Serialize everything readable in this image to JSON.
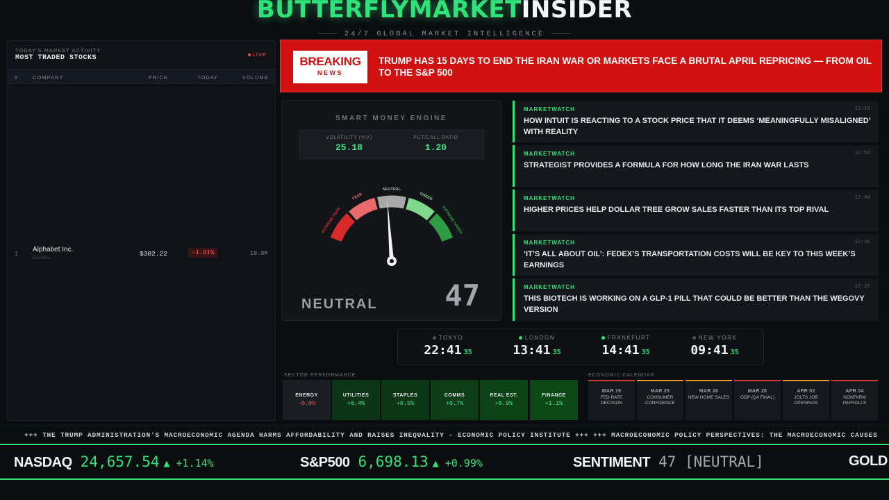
{
  "header": {
    "brand_part1": "BUTTERFLYMARKET",
    "brand_part2": "INSIDER",
    "tagline": "24/7 GLOBAL MARKET INTELLIGENCE"
  },
  "stocks_panel": {
    "subtitle": "TODAY'S MARKET ACTIVITY",
    "title": "MOST TRADED STOCKS",
    "live_label": "LIVE",
    "columns": [
      "#",
      "COMPANY",
      "PRICE",
      "TODAY",
      "VOLUME"
    ],
    "rows": [
      {
        "rank": "1",
        "company": "Alphabet Inc.",
        "ticker": "GOOGL",
        "price": "$302.22",
        "change": "-1.61%",
        "volume": "19.9M"
      }
    ]
  },
  "breaking": {
    "badge_line1": "BREAKING",
    "badge_line2": "NEWS",
    "headline": "TRUMP HAS 15 DAYS TO END THE IRAN WAR OR MARKETS FACE A BRUTAL APRIL REPRICING — FROM OIL TO THE S&P 500"
  },
  "gauge": {
    "title": "SMART MONEY ENGINE",
    "vix_label": "VOLATILITY (VIX)",
    "vix_value": "25.18",
    "pc_label": "PUT/CALL RATIO",
    "pc_value": "1.20",
    "zones": [
      "EXTREME FEAR",
      "FEAR",
      "NEUTRAL",
      "GREED",
      "EXTREME GREED"
    ],
    "sentiment_label": "NEUTRAL",
    "score": 47,
    "score_text": "47",
    "colors": {
      "extreme_fear": "#d92a2a",
      "fear": "#e86a6a",
      "neutral": "#a8a8a8",
      "greed": "#7fd98d",
      "extreme_greed": "#2f9b45"
    }
  },
  "news": [
    {
      "source": "MARKETWATCH",
      "time": "13:15",
      "headline": "HOW INTUIT IS REACTING TO A STOCK PRICE THAT IT DEEMS ‘MEANINGFULLY MISALIGNED’ WITH REALITY"
    },
    {
      "source": "MARKETWATCH",
      "time": "12:53",
      "headline": "STRATEGIST PROVIDES A FORMULA FOR HOW LONG THE IRAN WAR LASTS"
    },
    {
      "source": "MARKETWATCH",
      "time": "12:44",
      "headline": "HIGHER PRICES HELP DOLLAR TREE GROW SALES FASTER THAN ITS TOP RIVAL"
    },
    {
      "source": "MARKETWATCH",
      "time": "12:41",
      "headline": "‘IT’S ALL ABOUT OIL’: FEDEX’S TRANSPORTATION COSTS WILL BE KEY TO THIS WEEK’S EARNINGS"
    },
    {
      "source": "MARKETWATCH",
      "time": "12:27",
      "headline": "THIS BIOTECH IS WORKING ON A GLP-1 PILL THAT COULD BE BETTER THAN THE WEGOVY VERSION"
    }
  ],
  "clocks": [
    {
      "city": "TOKYO",
      "time": "22:41",
      "sec": "35",
      "status": "closed"
    },
    {
      "city": "LONDON",
      "time": "13:41",
      "sec": "35",
      "status": "open"
    },
    {
      "city": "FRANKFURT",
      "time": "14:41",
      "sec": "35",
      "status": "open"
    },
    {
      "city": "NEW YORK",
      "time": "09:41",
      "sec": "35",
      "status": "closed"
    }
  ],
  "sectors": {
    "label": "SECTOR PERFORMANCE",
    "items": [
      {
        "name": "ENERGY",
        "value": "-0.0%",
        "trend": "down"
      },
      {
        "name": "UTILITIES",
        "value": "+0.4%",
        "trend": "up"
      },
      {
        "name": "STAPLES",
        "value": "+0.5%",
        "trend": "up"
      },
      {
        "name": "COMMS",
        "value": "+0.7%",
        "trend": "up"
      },
      {
        "name": "REAL EST.",
        "value": "+0.9%",
        "trend": "up"
      },
      {
        "name": "FINANCE",
        "value": "+1.1%",
        "trend": "up"
      }
    ]
  },
  "economic_calendar": {
    "label": "ECONOMIC CALENDAR",
    "events": [
      {
        "date": "MAR 19",
        "name": "FED RATE DECISION",
        "color": "#d23a3a"
      },
      {
        "date": "MAR 25",
        "name": "CONSUMER CONFIDENCE",
        "color": "#e39a2a"
      },
      {
        "date": "MAR 26",
        "name": "NEW HOME SALES",
        "color": "#e39a2a"
      },
      {
        "date": "MAR 28",
        "name": "GDP (Q4 FINAL)",
        "color": "#d23a3a"
      },
      {
        "date": "APR 02",
        "name": "JOLTS JOB OPENINGS",
        "color": "#e39a2a"
      },
      {
        "date": "APR 04",
        "name": "NONFARM PAYROLLS",
        "color": "#d23a3a"
      }
    ]
  },
  "news_ticker": "+++ THE TRUMP ADMINISTRATION'S MACROECONOMIC AGENDA HARMS AFFORDABILITY AND RAISES INEQUALITY - ECONOMIC POLICY INSTITUTE +++ +++ MACROECONOMIC POLICY PERSPECTIVES: THE MACROECONOMIC CAUSES",
  "market_ticker": {
    "nasdaq_name": "NASDAQ",
    "nasdaq_value": "24,657.54",
    "nasdaq_change": "▲ +1.14%",
    "sp500_name": "S&P500",
    "sp500_value": "6,698.13",
    "sp500_change": "▲ +0.99%",
    "sentiment_name": "SENTIMENT",
    "sentiment_value": "47 [NEUTRAL]",
    "gold_name": "GOLD"
  }
}
